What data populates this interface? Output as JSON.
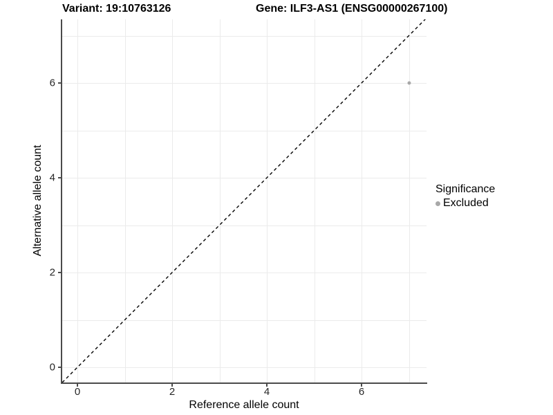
{
  "chart_data": {
    "type": "scatter",
    "title_left": "Variant: 19:10763126",
    "title_right": "Gene: ILF3-AS1 (ENSG00000267100)",
    "xlabel": "Reference allele count",
    "ylabel": "Alternative allele count",
    "x_ticks": [
      0,
      2,
      4,
      6
    ],
    "y_ticks": [
      0,
      2,
      4,
      6
    ],
    "xlim": [
      -0.35,
      7.35
    ],
    "ylim": [
      -0.35,
      7.35
    ],
    "grid": {
      "on": true,
      "interval": 1,
      "min": 0,
      "max": 7,
      "color": "#ebebeb"
    },
    "series": [
      {
        "name": "Excluded",
        "color": "#a8a8a8",
        "points": [
          {
            "x": 7,
            "y": 6
          }
        ]
      }
    ],
    "reference_line": {
      "kind": "identity y=x",
      "style": "dashed",
      "color": "#000000"
    },
    "legend": {
      "title": "Significance",
      "position": "right",
      "items": [
        {
          "label": "Excluded",
          "color": "#a8a8a8"
        }
      ]
    },
    "style": {
      "axis_line_color": "#4a4a4a",
      "tick_label_color": "#262626",
      "background": "#ffffff"
    }
  }
}
